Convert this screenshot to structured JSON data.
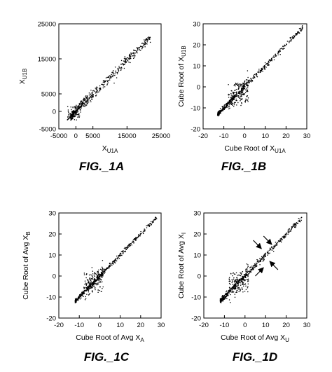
{
  "chart_data": [
    {
      "id": "fig-1a",
      "type": "scatter",
      "figure_label": "FIG._1A",
      "xlabel": {
        "text": "X",
        "sub": "U1A"
      },
      "ylabel": {
        "text": "X",
        "sub": "U1B"
      },
      "xlim": [
        -5000,
        25000
      ],
      "ylim": [
        -5000,
        25000
      ],
      "xticks": [
        -5000,
        0,
        5000,
        15000,
        25000
      ],
      "xtick_labels": [
        "-5000",
        "0",
        "5000",
        "15000",
        "25000"
      ],
      "yticks": [
        -5000,
        0,
        5000,
        15000,
        25000
      ],
      "ytick_labels": [
        "-5000",
        "0",
        "5000",
        "15000",
        "25000"
      ],
      "distribution": {
        "slope": 0.97,
        "x_range": [
          -1500,
          22000
        ],
        "spread": 700,
        "core": [
          [
            -500,
            2000,
            0.8
          ]
        ]
      },
      "marks": []
    },
    {
      "id": "fig-1b",
      "type": "scatter",
      "figure_label": "FIG._1B",
      "xlabel": {
        "text": "Cube Root of X",
        "sub": "U1A"
      },
      "ylabel": {
        "text": "Cube Root of X",
        "sub": "U1B"
      },
      "xlim": [
        -20,
        30
      ],
      "ylim": [
        -20,
        30
      ],
      "xticks": [
        -20,
        -10,
        0,
        10,
        20,
        30
      ],
      "xtick_labels": [
        "-20",
        "-10",
        "0",
        "10",
        "20",
        "30"
      ],
      "yticks": [
        -20,
        -10,
        0,
        10,
        20,
        30
      ],
      "ytick_labels": [
        "-20",
        "-10",
        "0",
        "10",
        "20",
        "30"
      ],
      "distribution": {
        "slope": 1.0,
        "x_range": [
          -13,
          28
        ],
        "spread": 0.6,
        "core": [
          [
            -3,
            3,
            2.5
          ]
        ]
      },
      "marks": []
    },
    {
      "id": "fig-1c",
      "type": "scatter",
      "figure_label": "FIG._1C",
      "xlabel": {
        "text": "Cube Root of Avg X",
        "sub": "A"
      },
      "ylabel": {
        "text": "Cube Root of Avg X",
        "sub": "B"
      },
      "xlim": [
        -20,
        30
      ],
      "ylim": [
        -20,
        30
      ],
      "xticks": [
        -20,
        -10,
        0,
        10,
        20,
        30
      ],
      "xtick_labels": [
        "-20",
        "-10",
        "0",
        "10",
        "20",
        "30"
      ],
      "yticks": [
        -20,
        -10,
        0,
        10,
        20,
        30
      ],
      "ytick_labels": [
        "-20",
        "-10",
        "0",
        "10",
        "20",
        "30"
      ],
      "distribution": {
        "slope": 1.0,
        "x_range": [
          -12,
          28
        ],
        "spread": 0.5,
        "core": [
          [
            -3,
            3,
            2.2
          ]
        ]
      },
      "marks": []
    },
    {
      "id": "fig-1d",
      "type": "scatter",
      "figure_label": "FIG._1D",
      "xlabel": {
        "text": "Cube Root of Avg X",
        "sub": "U"
      },
      "ylabel": {
        "text": "Cube Root of Avg X",
        "sub": "I"
      },
      "xlim": [
        -20,
        30
      ],
      "ylim": [
        -20,
        30
      ],
      "xticks": [
        -20,
        -10,
        0,
        10,
        20,
        30
      ],
      "xtick_labels": [
        "-20",
        "-10",
        "0",
        "10",
        "20",
        "30"
      ],
      "yticks": [
        -20,
        -10,
        0,
        10,
        20,
        30
      ],
      "ytick_labels": [
        "-20",
        "-10",
        "0",
        "10",
        "20",
        "30"
      ],
      "distribution": {
        "slope": 1.0,
        "x_range": [
          -12,
          28
        ],
        "spread": 0.7,
        "core": [
          [
            -3,
            3,
            2.3
          ]
        ]
      },
      "marks": [
        {
          "type": "arrow",
          "tip": [
            8,
            13
          ],
          "dir": "from-upper-left"
        },
        {
          "type": "arrow",
          "tip": [
            13,
            15
          ],
          "dir": "from-upper-left"
        },
        {
          "type": "arrow",
          "tip": [
            12,
            7
          ],
          "dir": "from-lower-right"
        },
        {
          "type": "arrow",
          "tip": [
            9,
            4
          ],
          "dir": "from-lower-left"
        }
      ]
    }
  ]
}
